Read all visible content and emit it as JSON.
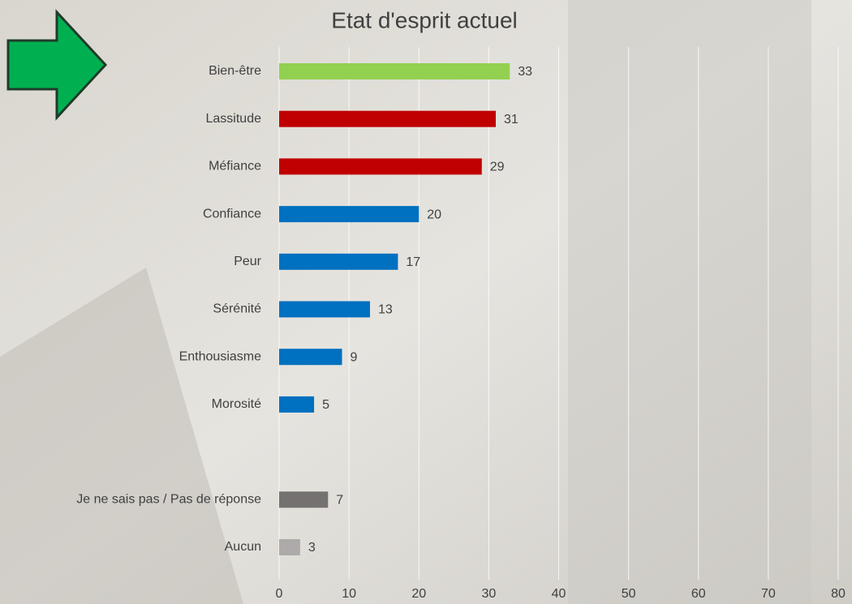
{
  "chart_data": {
    "type": "bar",
    "orientation": "horizontal",
    "title": "Etat d'esprit actuel",
    "categories": [
      "Bien-être",
      "Lassitude",
      "Méfiance",
      "Confiance",
      "Peur",
      "Sérénité",
      "Enthousiasme",
      "Morosité",
      null,
      "Je ne sais pas / Pas de réponse",
      "Aucun"
    ],
    "values": [
      33,
      31,
      29,
      20,
      17,
      13,
      9,
      5,
      null,
      7,
      3
    ],
    "colors": [
      "#92d050",
      "#c00000",
      "#c00000",
      "#0070c0",
      "#0070c0",
      "#0070c0",
      "#0070c0",
      "#0070c0",
      null,
      "#767171",
      "#aeaaaa"
    ],
    "xlim": [
      0,
      80
    ],
    "xticks": [
      0,
      10,
      20,
      30,
      40,
      50,
      60,
      70,
      80
    ],
    "grid": true
  }
}
